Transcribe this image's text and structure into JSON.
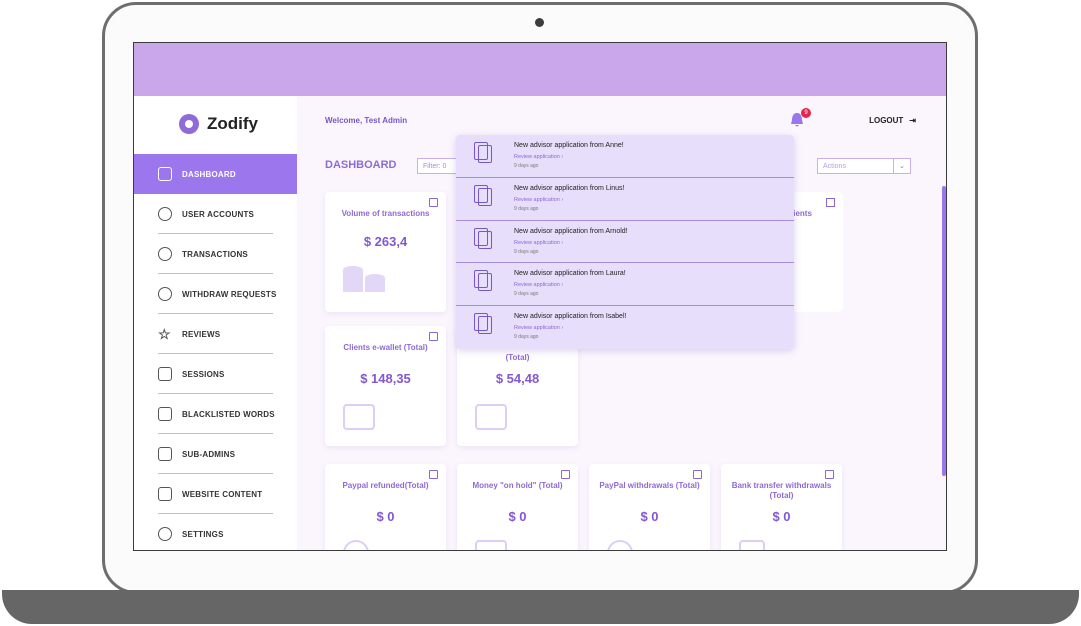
{
  "app": {
    "name": "Zodify"
  },
  "header": {
    "welcome": "Welcome, Test Admin",
    "notification_count": "9",
    "logout": "LOGOUT"
  },
  "sidebar": {
    "items": [
      {
        "label": "DASHBOARD"
      },
      {
        "label": "USER ACCOUNTS"
      },
      {
        "label": "TRANSACTIONS"
      },
      {
        "label": "WITHDRAW REQUESTS"
      },
      {
        "label": "REVIEWS"
      },
      {
        "label": "SESSIONS"
      },
      {
        "label": "BLACKLISTED WORDS"
      },
      {
        "label": "SUB-ADMINS"
      },
      {
        "label": "WEBSITE CONTENT"
      },
      {
        "label": "SETTINGS"
      }
    ]
  },
  "dashboard": {
    "title": "DASHBOARD",
    "filter": "Filter: 0",
    "actions_placeholder": "Actions",
    "partial_clients": "lients",
    "partial_total": "(Total)"
  },
  "cards": [
    {
      "label": "Volume of transactions",
      "amount": "$ 263,4"
    },
    {
      "label": "Clients e-wallet (Total)",
      "amount": "$ 148,35"
    },
    {
      "label": "",
      "amount": "$ 54,48"
    },
    {
      "label": "Paypal refunded(Total)",
      "amount": "$ 0"
    },
    {
      "label": "Money \"on hold\" (Total)",
      "amount": "$ 0"
    },
    {
      "label": "PayPal withdrawals (Total)",
      "amount": "$ 0"
    },
    {
      "label": "Bank transfer withdrawals (Total)",
      "amount": "$ 0"
    }
  ],
  "notifications": [
    {
      "message": "New advisor application from Anne!",
      "link": "Review application",
      "time": "9 days ago"
    },
    {
      "message": "New advisor application from Linus!",
      "link": "Review application",
      "time": "9 days ago"
    },
    {
      "message": "New advisor application from Arnold!",
      "link": "Review application",
      "time": "9 days ago"
    },
    {
      "message": "New advisor application from Laura!",
      "link": "Review application",
      "time": "9 days ago"
    },
    {
      "message": "New advisor application from Isabel!",
      "link": "Review application",
      "time": "9 days ago"
    }
  ],
  "colors": {
    "accent": "#9b76ec",
    "topband": "#caa6ea",
    "badge": "#e0264a"
  }
}
